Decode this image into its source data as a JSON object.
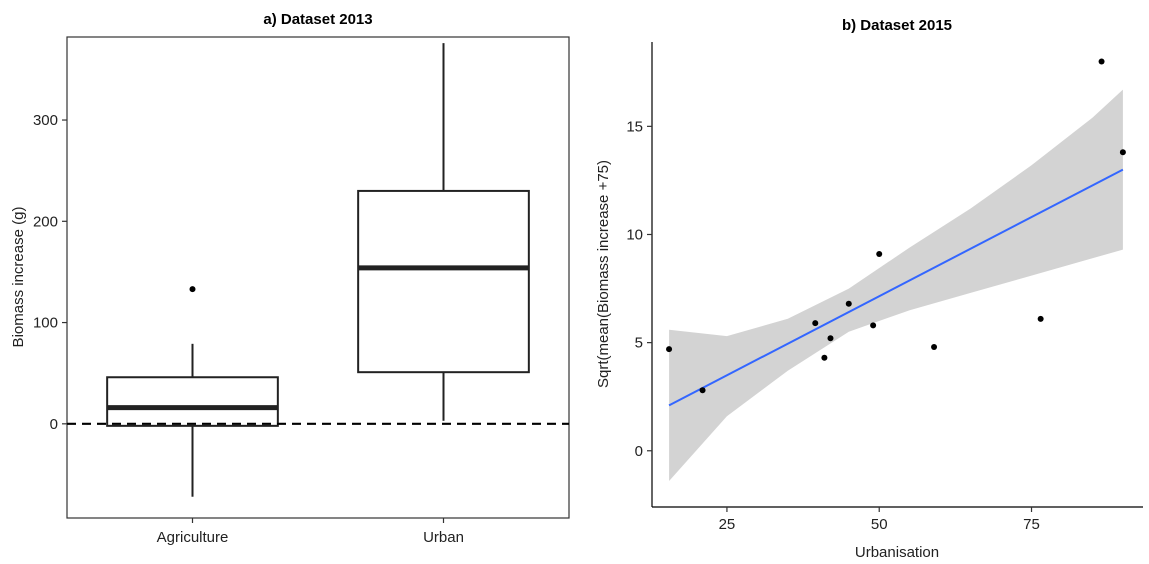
{
  "chart_data": [
    {
      "type": "box",
      "title": "a) Dataset 2013",
      "xlabel": "",
      "ylabel": "Biomass increase (g)",
      "ylim": [
        -93,
        382
      ],
      "yticks": [
        0,
        100,
        200,
        300
      ],
      "categories": [
        "Agriculture",
        "Urban"
      ],
      "boxes": [
        {
          "category": "Agriculture",
          "whisker_low": -72,
          "q1": -2,
          "median": 16,
          "q3": 46,
          "whisker_high": 79,
          "outliers": [
            133
          ]
        },
        {
          "category": "Urban",
          "whisker_low": 3,
          "q1": 51,
          "median": 154,
          "q3": 230,
          "whisker_high": 376,
          "outliers": []
        }
      ],
      "reference_line": {
        "y": 0,
        "style": "dashed"
      },
      "panel_border": true,
      "grid": false
    },
    {
      "type": "scatter",
      "title": "b) Dataset 2015",
      "xlabel": "Urbanisation",
      "ylabel": "Sqrt(mean(Biomass increase +75)",
      "xlim": [
        12.7,
        93.3
      ],
      "ylim": [
        -2.6,
        18.9
      ],
      "xticks": [
        25,
        50,
        75
      ],
      "yticks": [
        0,
        5,
        10,
        15
      ],
      "points": [
        {
          "x": 15.5,
          "y": 4.7
        },
        {
          "x": 21,
          "y": 2.8
        },
        {
          "x": 39.5,
          "y": 5.9
        },
        {
          "x": 41,
          "y": 4.3
        },
        {
          "x": 42,
          "y": 5.2
        },
        {
          "x": 45,
          "y": 6.8
        },
        {
          "x": 49,
          "y": 5.8
        },
        {
          "x": 50,
          "y": 9.1
        },
        {
          "x": 59,
          "y": 4.8
        },
        {
          "x": 76.5,
          "y": 6.1
        },
        {
          "x": 86.5,
          "y": 18.0
        },
        {
          "x": 90,
          "y": 13.8
        }
      ],
      "fit_line": {
        "x": [
          15.5,
          90
        ],
        "y": [
          2.1,
          13.0
        ],
        "color": "#3366FF"
      },
      "confidence_band": {
        "x": [
          15.5,
          25,
          35,
          45,
          55,
          65,
          75,
          85,
          90
        ],
        "lower": [
          -1.4,
          1.6,
          3.7,
          5.5,
          6.5,
          7.3,
          8.1,
          8.9,
          9.3
        ],
        "upper": [
          5.6,
          5.3,
          6.1,
          7.5,
          9.4,
          11.2,
          13.2,
          15.4,
          16.7
        ],
        "color": "#D3D3D3"
      },
      "grid": false
    }
  ]
}
